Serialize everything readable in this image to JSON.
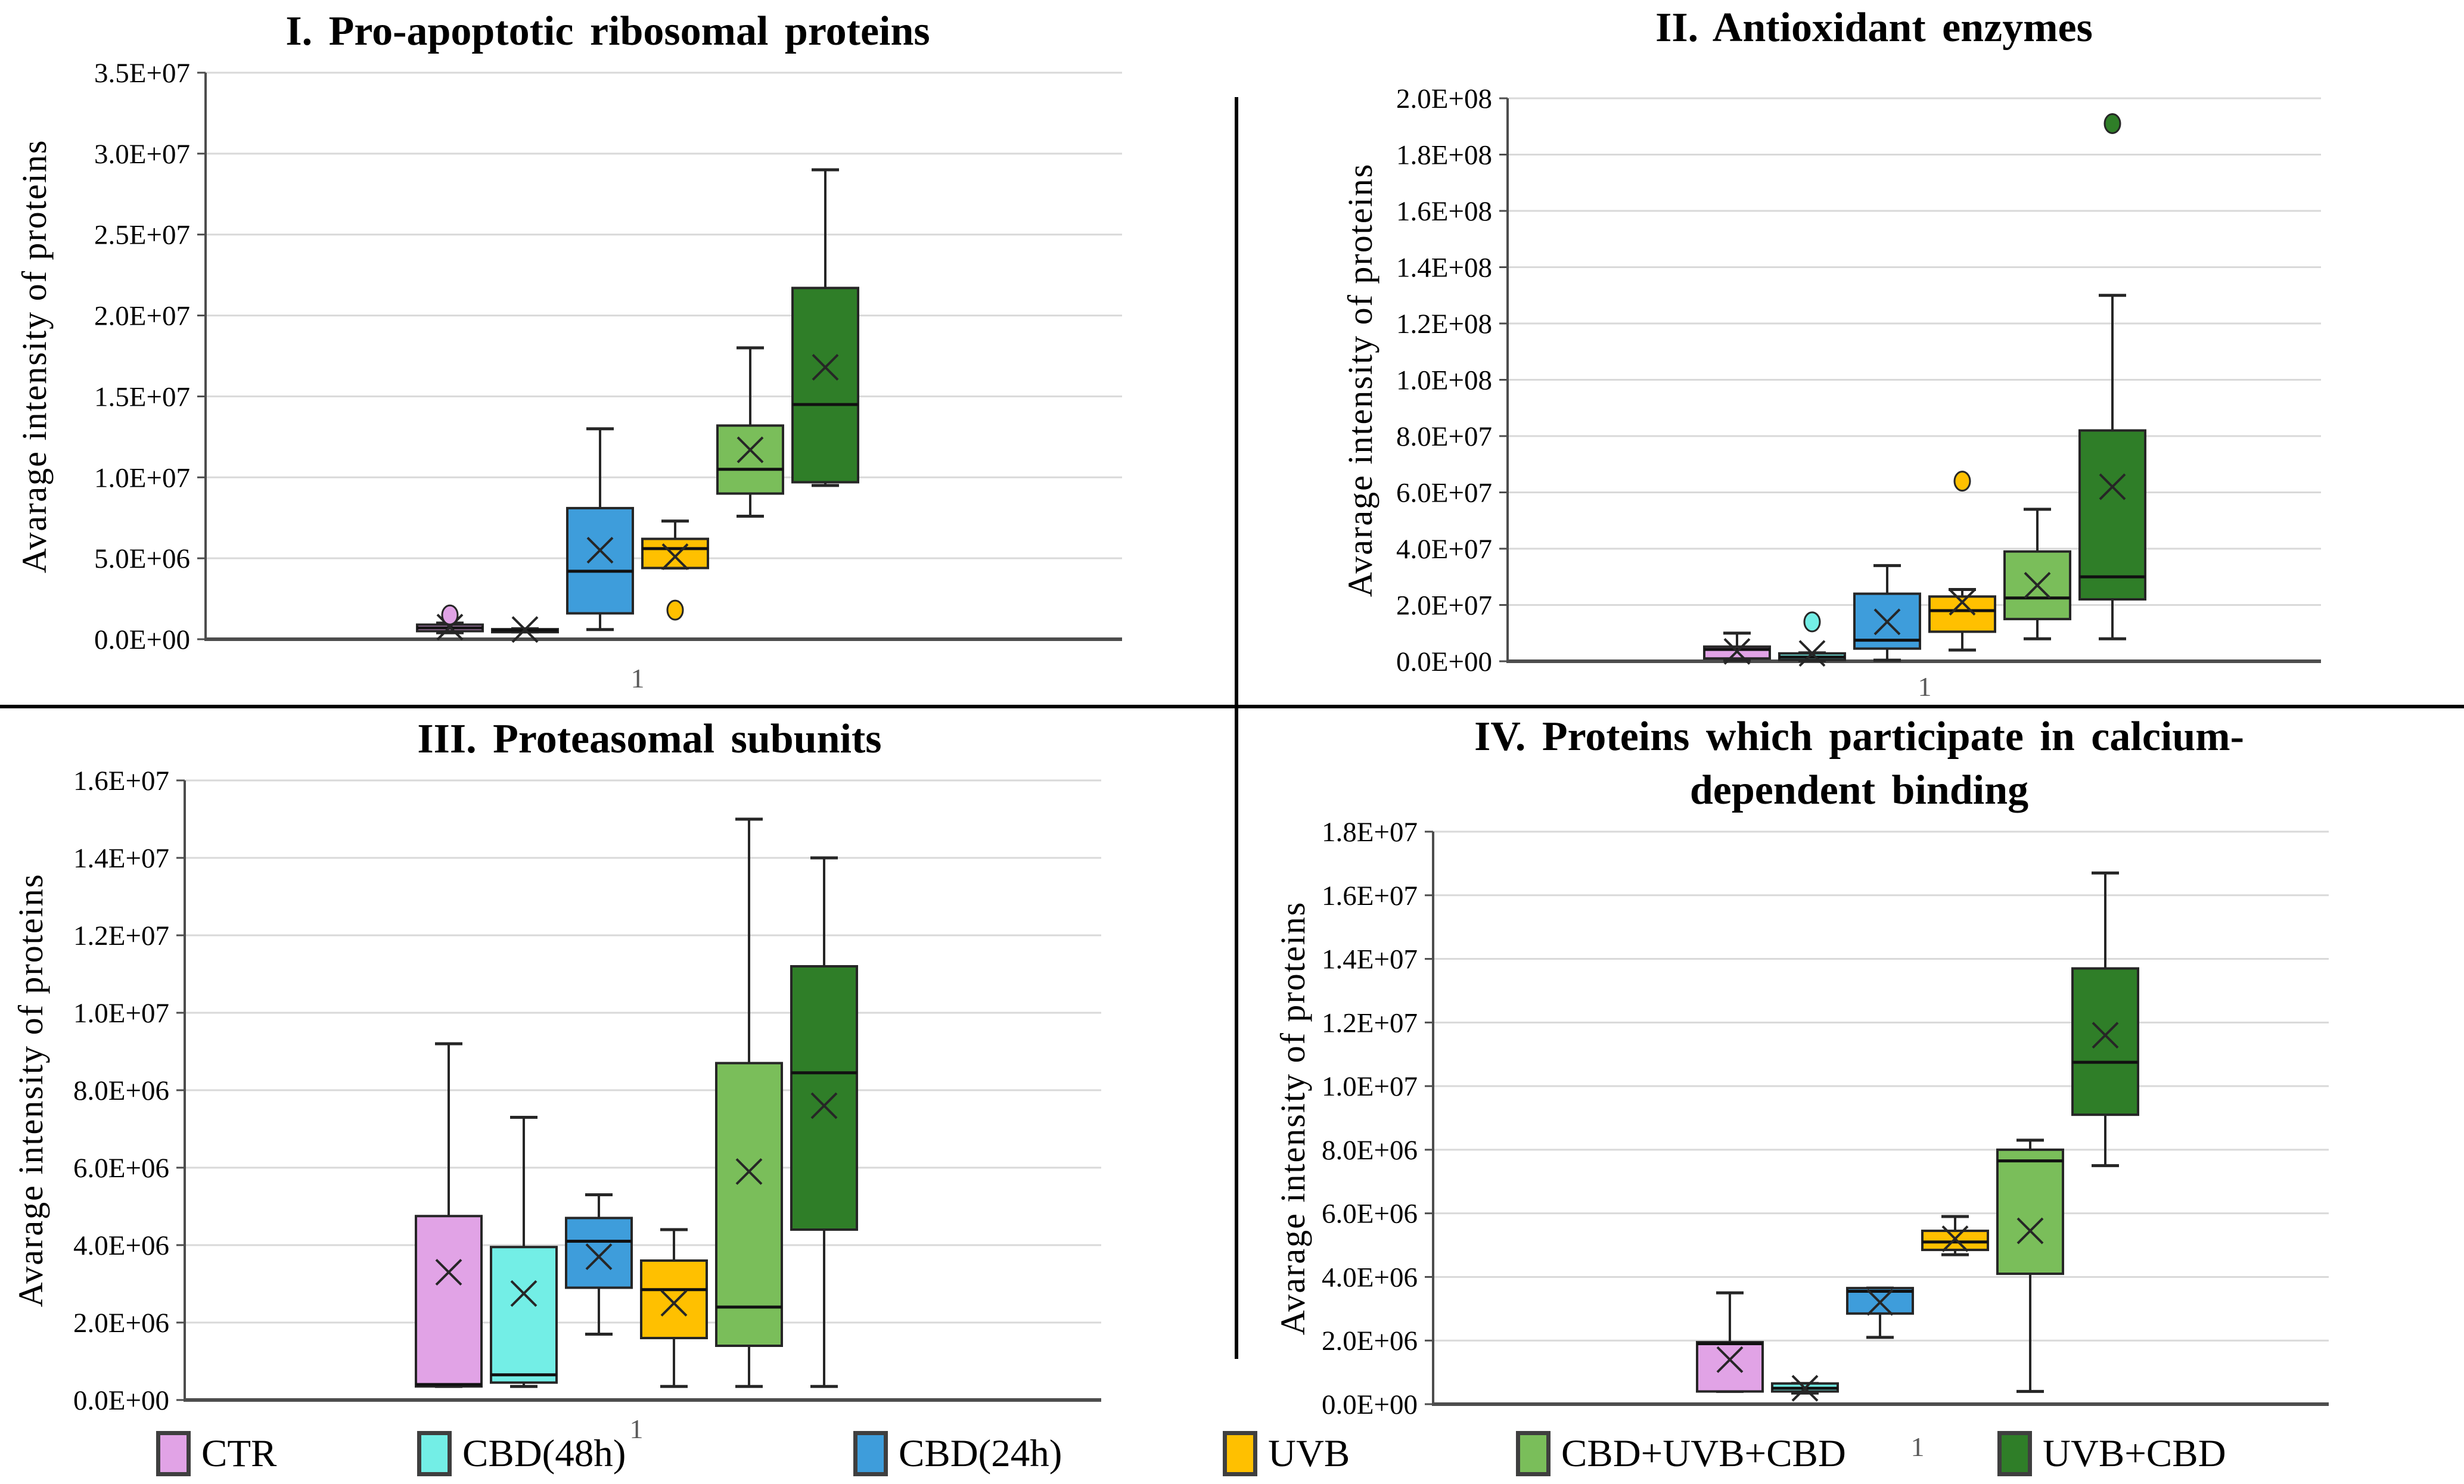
{
  "figure": {
    "x_axis_shared_tick": "1",
    "y_axis_label": "Avarage intensity of proteins"
  },
  "legend": {
    "items": [
      {
        "label": "CTR",
        "color": "#E1A3E6"
      },
      {
        "label": "CBD(48h)",
        "color": "#73EEE6"
      },
      {
        "label": "CBD(24h)",
        "color": "#3E9DDB"
      },
      {
        "label": "UVB",
        "color": "#FFC000"
      },
      {
        "label": "CBD+UVB+CBD",
        "color": "#7ABE5A"
      },
      {
        "label": "UVB+CBD",
        "color": "#2F7E28"
      }
    ]
  },
  "chart_data": [
    {
      "type": "box",
      "panel": "I",
      "title": "I. Pro-apoptotic ribosomal proteins",
      "ylabel": "Avarage intensity of proteins",
      "x_tick": "1",
      "ylim": [
        0,
        35000000
      ],
      "ystep": 5000000,
      "grid": true,
      "ytick_labels": [
        "0.0E+00",
        "5.0E+06",
        "1.0E+07",
        "1.5E+07",
        "2.0E+07",
        "2.5E+07",
        "3.0E+07",
        "3.5E+07"
      ],
      "series": [
        {
          "name": "CTR",
          "color": "#E1A3E6",
          "q1": 500000,
          "median": 700000,
          "q3": 900000,
          "whisker_low": 400000,
          "whisker_high": 1000000,
          "mean": 750000,
          "outliers": [
            1500000
          ]
        },
        {
          "name": "CBD(48h)",
          "color": "#73EEE6",
          "q1": 500000,
          "median": 550000,
          "q3": 620000,
          "whisker_low": 450000,
          "whisker_high": 650000,
          "mean": 600000,
          "outliers": []
        },
        {
          "name": "CBD(24h)",
          "color": "#3E9DDB",
          "q1": 1600000,
          "median": 4200000,
          "q3": 8100000,
          "whisker_low": 600000,
          "whisker_high": 13000000,
          "mean": 5500000,
          "outliers": []
        },
        {
          "name": "UVB",
          "color": "#FFC000",
          "q1": 4400000,
          "median": 5600000,
          "q3": 6200000,
          "whisker_low": 4400000,
          "whisker_high": 7300000,
          "mean": 5100000,
          "outliers": [
            1800000
          ]
        },
        {
          "name": "CBD+UVB+CBD",
          "color": "#7ABE5A",
          "q1": 9000000,
          "median": 10500000,
          "q3": 13200000,
          "whisker_low": 7600000,
          "whisker_high": 18000000,
          "mean": 11700000,
          "outliers": []
        },
        {
          "name": "UVB+CBD",
          "color": "#2F7E28",
          "q1": 9700000,
          "median": 14500000,
          "q3": 21700000,
          "whisker_low": 9500000,
          "whisker_high": 29000000,
          "mean": 16800000,
          "outliers": []
        }
      ]
    },
    {
      "type": "box",
      "panel": "II",
      "title": "II. Antioxidant enzymes",
      "ylabel": "Avarage intensity of proteins",
      "x_tick": "1",
      "ylim": [
        0,
        200000000
      ],
      "ystep": 20000000,
      "grid": true,
      "ytick_labels": [
        "0.0E+00",
        "2.0E+07",
        "4.0E+07",
        "6.0E+07",
        "8.0E+07",
        "1.0E+08",
        "1.2E+08",
        "1.4E+08",
        "1.6E+08",
        "1.8E+08",
        "2.0E+08"
      ],
      "series": [
        {
          "name": "CTR",
          "color": "#E1A3E6",
          "q1": 1000000,
          "median": 4200000,
          "q3": 5200000,
          "whisker_low": 300000,
          "whisker_high": 10000000,
          "mean": 3500000,
          "outliers": []
        },
        {
          "name": "CBD(48h)",
          "color": "#73EEE6",
          "q1": 500000,
          "median": 1500000,
          "q3": 2800000,
          "whisker_low": 200000,
          "whisker_high": 3000000,
          "mean": 2800000,
          "outliers": [
            14000000
          ]
        },
        {
          "name": "CBD(24h)",
          "color": "#3E9DDB",
          "q1": 4500000,
          "median": 7500000,
          "q3": 24000000,
          "whisker_low": 400000,
          "whisker_high": 34000000,
          "mean": 14000000,
          "outliers": []
        },
        {
          "name": "UVB",
          "color": "#FFC000",
          "q1": 10500000,
          "median": 18000000,
          "q3": 23000000,
          "whisker_low": 4000000,
          "whisker_high": 25500000,
          "mean": 21000000,
          "outliers": [
            64000000
          ]
        },
        {
          "name": "CBD+UVB+CBD",
          "color": "#7ABE5A",
          "q1": 15000000,
          "median": 22500000,
          "q3": 39000000,
          "whisker_low": 8000000,
          "whisker_high": 54000000,
          "mean": 27000000,
          "outliers": []
        },
        {
          "name": "UVB+CBD",
          "color": "#2F7E28",
          "q1": 22000000,
          "median": 30000000,
          "q3": 82000000,
          "whisker_low": 8000000,
          "whisker_high": 130000000,
          "mean": 62000000,
          "outliers": [
            191000000
          ]
        }
      ]
    },
    {
      "type": "box",
      "panel": "III",
      "title": "III. Proteasomal subunits",
      "ylabel": "Avarage intensity of proteins",
      "x_tick": "1",
      "ylim": [
        0,
        16000000
      ],
      "ystep": 2000000,
      "grid": true,
      "ytick_labels": [
        "0.0E+00",
        "2.0E+06",
        "4.0E+06",
        "6.0E+06",
        "8.0E+06",
        "1.0E+07",
        "1.2E+07",
        "1.4E+07",
        "1.6E+07"
      ],
      "series": [
        {
          "name": "CTR",
          "color": "#E1A3E6",
          "q1": 350000,
          "median": 400000,
          "q3": 4750000,
          "whisker_low": 350000,
          "whisker_high": 9200000,
          "mean": 3300000,
          "outliers": []
        },
        {
          "name": "CBD(48h)",
          "color": "#73EEE6",
          "q1": 450000,
          "median": 650000,
          "q3": 3950000,
          "whisker_low": 350000,
          "whisker_high": 7300000,
          "mean": 2750000,
          "outliers": []
        },
        {
          "name": "CBD(24h)",
          "color": "#3E9DDB",
          "q1": 2900000,
          "median": 4100000,
          "q3": 4700000,
          "whisker_low": 1700000,
          "whisker_high": 5300000,
          "mean": 3700000,
          "outliers": []
        },
        {
          "name": "UVB",
          "color": "#FFC000",
          "q1": 1600000,
          "median": 2850000,
          "q3": 3600000,
          "whisker_low": 350000,
          "whisker_high": 4400000,
          "mean": 2500000,
          "outliers": []
        },
        {
          "name": "CBD+UVB+CBD",
          "color": "#7ABE5A",
          "q1": 1400000,
          "median": 2400000,
          "q3": 8700000,
          "whisker_low": 350000,
          "whisker_high": 15000000,
          "mean": 5900000,
          "outliers": []
        },
        {
          "name": "UVB+CBD",
          "color": "#2F7E28",
          "q1": 4400000,
          "median": 8450000,
          "q3": 11200000,
          "whisker_low": 350000,
          "whisker_high": 14000000,
          "mean": 7600000,
          "outliers": []
        }
      ]
    },
    {
      "type": "box",
      "panel": "IV",
      "title": "IV. Proteins which participate in calcium-dependent binding",
      "ylabel": "Avarage intensity of proteins",
      "x_tick": "1",
      "ylim": [
        0,
        18000000
      ],
      "ystep": 2000000,
      "grid": true,
      "ytick_labels": [
        "0.0E+00",
        "2.0E+06",
        "4.0E+06",
        "6.0E+06",
        "8.0E+06",
        "1.0E+07",
        "1.2E+07",
        "1.4E+07",
        "1.6E+07",
        "1.8E+07"
      ],
      "series": [
        {
          "name": "CTR",
          "color": "#E1A3E6",
          "q1": 400000,
          "median": 1900000,
          "q3": 1950000,
          "whisker_low": 400000,
          "whisker_high": 3500000,
          "mean": 1400000,
          "outliers": []
        },
        {
          "name": "CBD(48h)",
          "color": "#73EEE6",
          "q1": 400000,
          "median": 500000,
          "q3": 650000,
          "whisker_low": 350000,
          "whisker_high": 650000,
          "mean": 500000,
          "outliers": []
        },
        {
          "name": "CBD(24h)",
          "color": "#3E9DDB",
          "q1": 2850000,
          "median": 3550000,
          "q3": 3650000,
          "whisker_low": 2100000,
          "whisker_high": 3650000,
          "mean": 3200000,
          "outliers": []
        },
        {
          "name": "UVB",
          "color": "#FFC000",
          "q1": 4850000,
          "median": 5100000,
          "q3": 5450000,
          "whisker_low": 4700000,
          "whisker_high": 5900000,
          "mean": 5200000,
          "outliers": []
        },
        {
          "name": "CBD+UVB+CBD",
          "color": "#7ABE5A",
          "q1": 4100000,
          "median": 7650000,
          "q3": 8000000,
          "whisker_low": 400000,
          "whisker_high": 8300000,
          "mean": 5450000,
          "outliers": []
        },
        {
          "name": "UVB+CBD",
          "color": "#2F7E28",
          "q1": 9100000,
          "median": 10750000,
          "q3": 13700000,
          "whisker_low": 7500000,
          "whisker_high": 16700000,
          "mean": 11600000,
          "outliers": []
        }
      ]
    }
  ]
}
